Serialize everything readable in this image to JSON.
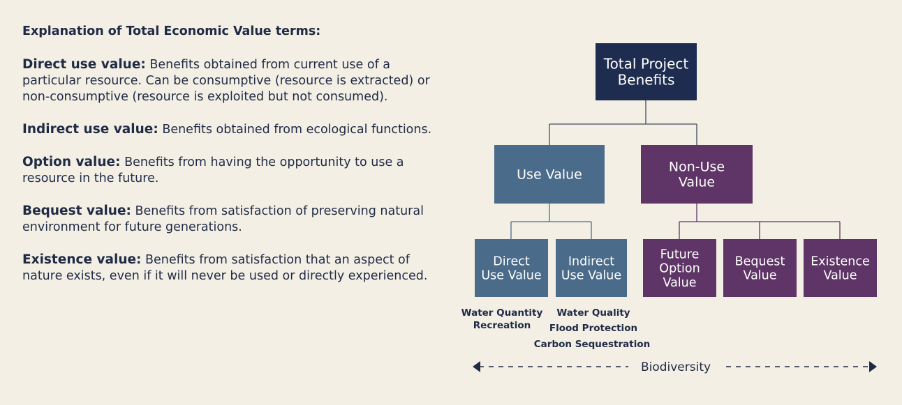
{
  "explanation": {
    "heading": "Explanation of Total Economic Value terms:",
    "terms": [
      {
        "term": "Direct use value:",
        "definition": "Benefits obtained from current use of a particular resource. Can be consumptive (resource is extracted) or non-consumptive (resource is exploited but not consumed)."
      },
      {
        "term": "Indirect use value:",
        "definition": "Benefits obtained from ecological functions."
      },
      {
        "term": "Option value:",
        "definition": "Benefits from having the opportunity to use a resource in the future."
      },
      {
        "term": "Bequest value:",
        "definition": "Benefits from satisfaction of preserving natural environment for future generations."
      },
      {
        "term": "Existence value:",
        "definition": "Benefits from satisfaction that an aspect of nature exists, even if it will never be used or directly experienced."
      }
    ]
  },
  "nodes": [
    {
      "lines": [
        "Total Project",
        "Benefits"
      ]
    },
    {
      "lines": [
        "Use Value"
      ]
    },
    {
      "lines": [
        "Non-Use",
        "Value"
      ]
    },
    {
      "lines": [
        "Direct",
        "Use Value"
      ]
    },
    {
      "lines": [
        "Indirect",
        "Use Value"
      ]
    },
    {
      "lines": [
        "Future",
        "Option",
        "Value"
      ]
    },
    {
      "lines": [
        "Bequest",
        "Value"
      ]
    },
    {
      "lines": [
        "Existence",
        "Value"
      ]
    }
  ],
  "examples": {
    "direct": [
      "Water Quantity",
      "Recreation"
    ],
    "indirect": [
      "Water Quality",
      "Flood Protection",
      "Carbon Sequestration"
    ]
  },
  "footer": "Biodiversity"
}
